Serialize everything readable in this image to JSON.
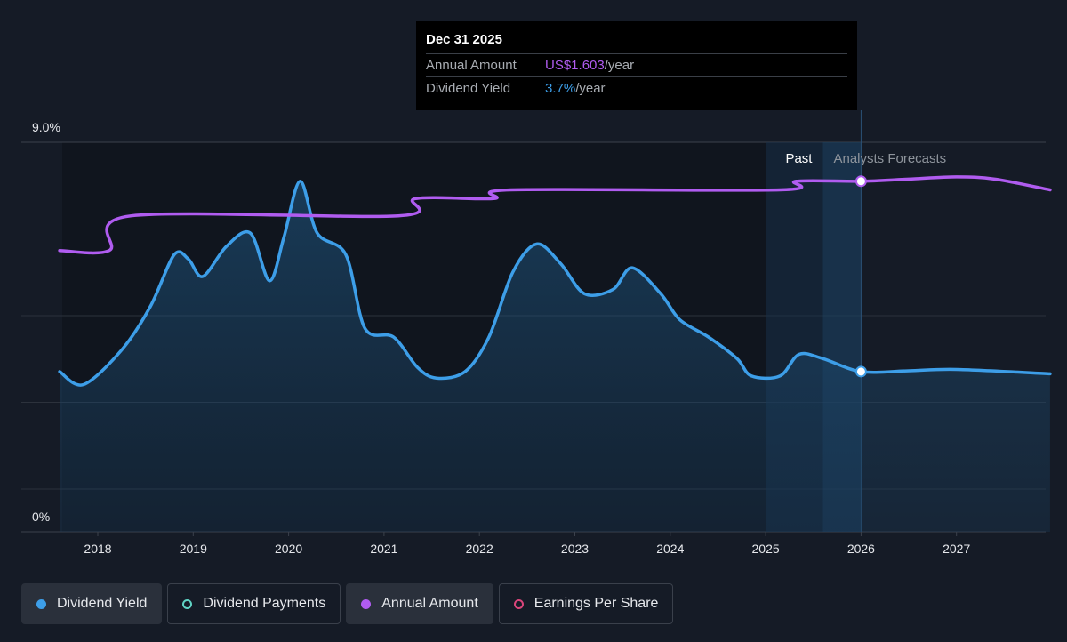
{
  "tooltip": {
    "date": "Dec 31 2025",
    "rows": [
      {
        "key": "Annual Amount",
        "value": "US$1.603",
        "unit": "/year"
      },
      {
        "key": "Dividend Yield",
        "value": "3.7%",
        "unit": "/year"
      }
    ]
  },
  "regions": {
    "past_label": "Past",
    "forecast_label": "Analysts Forecasts"
  },
  "legend": [
    {
      "label": "Dividend Yield",
      "color": "#3d9ee8",
      "style": "filled",
      "active": true
    },
    {
      "label": "Dividend Payments",
      "color": "#5fd3c4",
      "style": "ring",
      "active": false
    },
    {
      "label": "Annual Amount",
      "color": "#b05cf0",
      "style": "filled",
      "active": true
    },
    {
      "label": "Earnings Per Share",
      "color": "#d9457a",
      "style": "ring",
      "active": false
    }
  ],
  "colors": {
    "yield": "#3d9ee8",
    "amount": "#b05cf0",
    "background": "#151b26"
  },
  "chart_data": {
    "type": "line",
    "y_axis": {
      "min": 0,
      "max": 9.0,
      "unit": "%",
      "tick_labels": [
        "9.0%",
        "0%"
      ]
    },
    "x_ticks": [
      "2018",
      "2019",
      "2020",
      "2021",
      "2022",
      "2023",
      "2024",
      "2025",
      "2026",
      "2027"
    ],
    "x_range": [
      2017.6,
      2027.98
    ],
    "past_forecast_boundary": 2026.0,
    "highlight_date": 2026.0,
    "series": [
      {
        "name": "Dividend Yield",
        "unit": "%",
        "fill": true,
        "points": [
          [
            2017.6,
            3.7
          ],
          [
            2017.85,
            3.4
          ],
          [
            2018.25,
            4.2
          ],
          [
            2018.55,
            5.2
          ],
          [
            2018.8,
            6.4
          ],
          [
            2018.95,
            6.3
          ],
          [
            2019.1,
            5.9
          ],
          [
            2019.35,
            6.6
          ],
          [
            2019.6,
            6.9
          ],
          [
            2019.8,
            5.8
          ],
          [
            2019.95,
            6.8
          ],
          [
            2020.12,
            8.1
          ],
          [
            2020.3,
            6.9
          ],
          [
            2020.6,
            6.4
          ],
          [
            2020.8,
            4.7
          ],
          [
            2021.1,
            4.5
          ],
          [
            2021.35,
            3.8
          ],
          [
            2021.55,
            3.55
          ],
          [
            2021.85,
            3.7
          ],
          [
            2022.1,
            4.5
          ],
          [
            2022.35,
            6.0
          ],
          [
            2022.6,
            6.65
          ],
          [
            2022.85,
            6.2
          ],
          [
            2023.1,
            5.5
          ],
          [
            2023.4,
            5.6
          ],
          [
            2023.6,
            6.1
          ],
          [
            2023.9,
            5.5
          ],
          [
            2024.1,
            4.9
          ],
          [
            2024.4,
            4.5
          ],
          [
            2024.7,
            4.0
          ],
          [
            2024.85,
            3.6
          ],
          [
            2025.15,
            3.6
          ],
          [
            2025.35,
            4.1
          ],
          [
            2025.6,
            4.0
          ],
          [
            2026.0,
            3.7
          ],
          [
            2026.5,
            3.72
          ],
          [
            2027.0,
            3.75
          ],
          [
            2027.98,
            3.65
          ]
        ]
      },
      {
        "name": "Annual Amount",
        "unit": "% of axis",
        "fill": false,
        "points": [
          [
            2017.6,
            6.5
          ],
          [
            2018.12,
            6.5
          ],
          [
            2018.35,
            7.3
          ],
          [
            2021.15,
            7.3
          ],
          [
            2021.33,
            7.7
          ],
          [
            2022.15,
            7.7
          ],
          [
            2022.33,
            7.9
          ],
          [
            2025.15,
            7.9
          ],
          [
            2025.32,
            8.1
          ],
          [
            2026.0,
            8.1
          ],
          [
            2026.5,
            8.15
          ],
          [
            2027.0,
            8.2
          ],
          [
            2027.4,
            8.15
          ],
          [
            2027.98,
            7.9
          ]
        ]
      }
    ]
  }
}
